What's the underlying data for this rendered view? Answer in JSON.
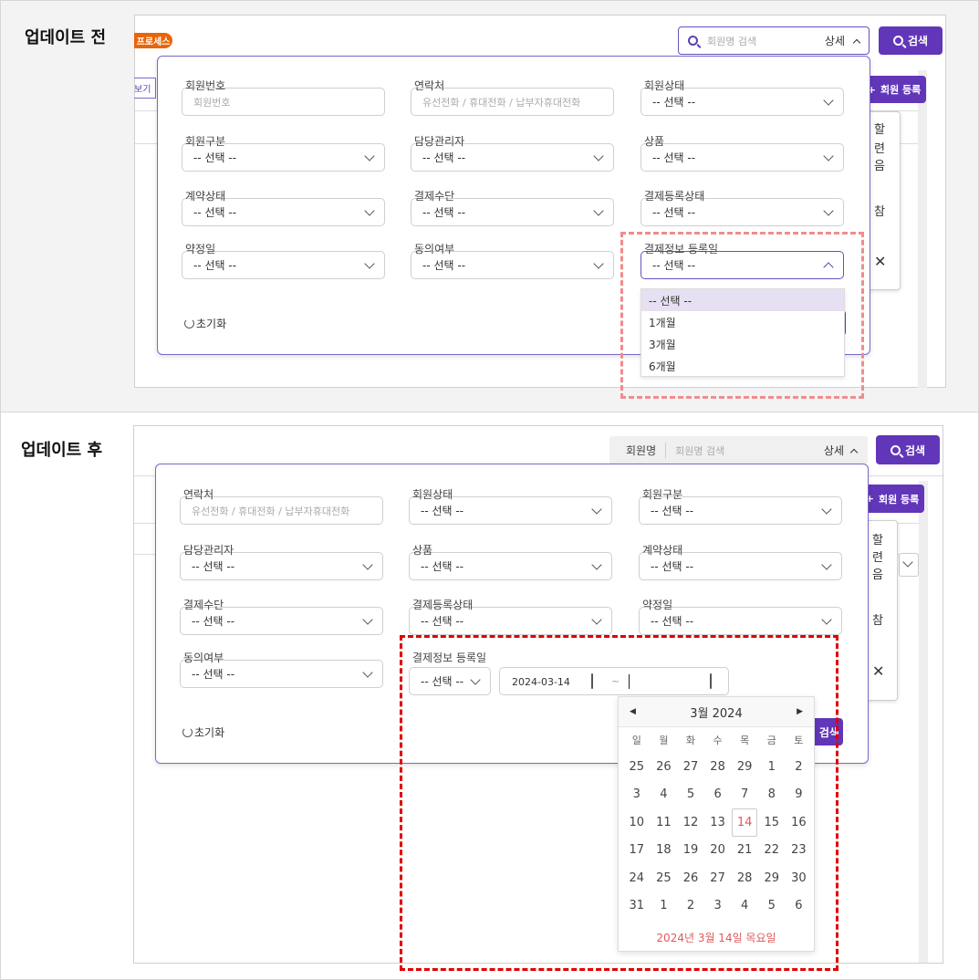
{
  "before": {
    "section_title": "업데이트 전",
    "badge": "프로세스",
    "tab_partial": "보기",
    "search": {
      "placeholder": "회원명 검색",
      "detail_label": "상세",
      "button": "검색"
    },
    "register_button": "회원 등록",
    "side_text": [
      "할",
      "련",
      "음",
      "참"
    ],
    "fields": [
      {
        "label": "회원번호",
        "type": "input",
        "placeholder": "회원번호"
      },
      {
        "label": "연락처",
        "type": "input",
        "placeholder": "유선전화 / 휴대전화 / 납부자휴대전화"
      },
      {
        "label": "회원상태",
        "type": "select",
        "value": "-- 선택 --"
      },
      {
        "label": "회원구분",
        "type": "select",
        "value": "-- 선택 --"
      },
      {
        "label": "담당관리자",
        "type": "select",
        "value": "-- 선택 --"
      },
      {
        "label": "상품",
        "type": "select",
        "value": "-- 선택 --"
      },
      {
        "label": "계약상태",
        "type": "select",
        "value": "-- 선택 --"
      },
      {
        "label": "결제수단",
        "type": "select",
        "value": "-- 선택 --"
      },
      {
        "label": "결제등록상태",
        "type": "select",
        "value": "-- 선택 --"
      },
      {
        "label": "약정일",
        "type": "select",
        "value": "-- 선택 --"
      },
      {
        "label": "동의여부",
        "type": "select",
        "value": "-- 선택 --"
      },
      {
        "label": "결제정보 등록일",
        "type": "select",
        "value": "-- 선택 --",
        "open": true
      }
    ],
    "dropdown_options": [
      "-- 선택 --",
      "1개월",
      "3개월",
      "6개월"
    ],
    "reset": "초기화",
    "highlight_color": "#f08c8c"
  },
  "after": {
    "section_title": "업데이트 후",
    "search": {
      "field_label": "회원명",
      "placeholder": "회원명 검색",
      "detail_label": "상세",
      "button": "검색"
    },
    "register_button": "회원 등록",
    "side_text": [
      "할",
      "련",
      "음",
      "참"
    ],
    "fields": [
      {
        "label": "연락처",
        "type": "input",
        "placeholder": "유선전화 / 휴대전화 / 납부자휴대전화"
      },
      {
        "label": "회원상태",
        "type": "select",
        "value": "-- 선택 --"
      },
      {
        "label": "회원구분",
        "type": "select",
        "value": "-- 선택 --"
      },
      {
        "label": "담당관리자",
        "type": "select",
        "value": "-- 선택 --"
      },
      {
        "label": "상품",
        "type": "select",
        "value": "-- 선택 --"
      },
      {
        "label": "계약상태",
        "type": "select",
        "value": "-- 선택 --"
      },
      {
        "label": "결제수단",
        "type": "select",
        "value": "-- 선택 --"
      },
      {
        "label": "결제등록상태",
        "type": "select",
        "value": "-- 선택 --"
      },
      {
        "label": "약정일",
        "type": "select",
        "value": "-- 선택 --"
      },
      {
        "label": "동의여부",
        "type": "select",
        "value": "-- 선택 --"
      }
    ],
    "payment_date": {
      "label": "결제정보 등록일",
      "select_value": "-- 선택 --",
      "start": "2024-03-14",
      "separator": "~",
      "end": ""
    },
    "calendar": {
      "title": "3월 2024",
      "weekdays": [
        "일",
        "월",
        "화",
        "수",
        "목",
        "금",
        "토"
      ],
      "days": [
        "25",
        "26",
        "27",
        "28",
        "29",
        "1",
        "2",
        "3",
        "4",
        "5",
        "6",
        "7",
        "8",
        "9",
        "10",
        "11",
        "12",
        "13",
        "14",
        "15",
        "16",
        "17",
        "18",
        "19",
        "20",
        "21",
        "22",
        "23",
        "24",
        "25",
        "26",
        "27",
        "28",
        "29",
        "30",
        "31",
        "1",
        "2",
        "3",
        "4",
        "5",
        "6"
      ],
      "selected": "14",
      "footer": "2024년 3월 14일 목요일"
    },
    "search_button_partial": "검색",
    "reset": "초기화",
    "highlight_color": "#e00000"
  },
  "colors": {
    "accent": "#6236b8",
    "badge": "#e8650a",
    "today": "#e05a5a"
  }
}
